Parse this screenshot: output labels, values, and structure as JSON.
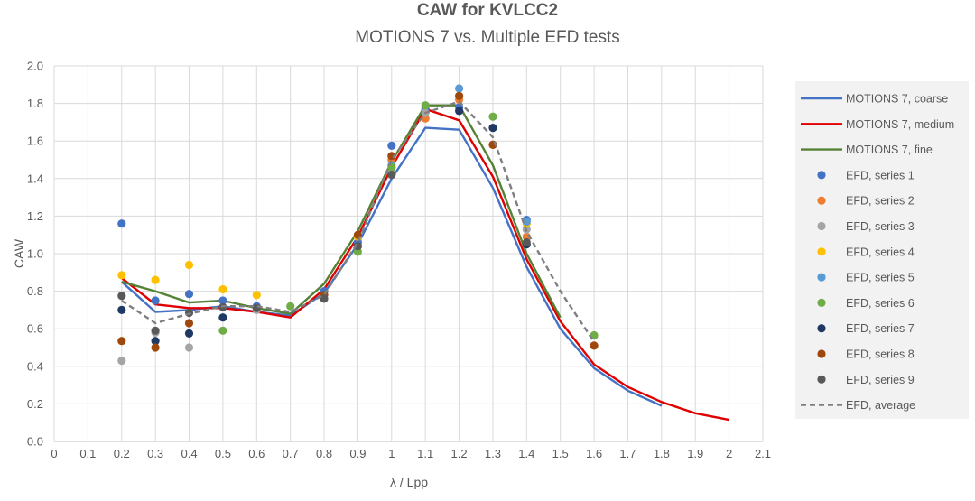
{
  "chart_data": {
    "type": "line",
    "title": "CAW for KVLCC2",
    "subtitle": "MOTIONS 7 vs. Multiple EFD tests",
    "xlabel": "λ / Lpp",
    "ylabel": "CAW",
    "xlim": [
      0,
      2.1
    ],
    "ylim": [
      0,
      2.0
    ],
    "x_ticks": [
      "0",
      "0.1",
      "0.2",
      "0.3",
      "0.4",
      "0.5",
      "0.6",
      "0.7",
      "0.8",
      "0.9",
      "1",
      "1.1",
      "1.2",
      "1.3",
      "1.4",
      "1.5",
      "1.6",
      "1.7",
      "1.8",
      "1.9",
      "2",
      "2.1"
    ],
    "y_ticks": [
      "0.0",
      "0.2",
      "0.4",
      "0.6",
      "0.8",
      "1.0",
      "1.2",
      "1.4",
      "1.6",
      "1.8",
      "2.0"
    ],
    "grid": true,
    "legend_position": "right",
    "lines": [
      {
        "name": "MOTIONS 7, coarse",
        "color": "#4472c4",
        "dash": false,
        "points": [
          [
            0.2,
            0.85
          ],
          [
            0.3,
            0.69
          ],
          [
            0.4,
            0.7
          ],
          [
            0.5,
            0.72
          ],
          [
            0.6,
            0.69
          ],
          [
            0.7,
            0.67
          ],
          [
            0.8,
            0.79
          ],
          [
            0.9,
            1.05
          ],
          [
            1.0,
            1.4
          ],
          [
            1.1,
            1.67
          ],
          [
            1.2,
            1.66
          ],
          [
            1.3,
            1.35
          ],
          [
            1.4,
            0.93
          ],
          [
            1.5,
            0.6
          ],
          [
            1.6,
            0.39
          ],
          [
            1.7,
            0.27
          ],
          [
            1.8,
            0.19
          ]
        ]
      },
      {
        "name": "MOTIONS 7, medium",
        "color": "#e00000",
        "dash": false,
        "points": [
          [
            0.2,
            0.87
          ],
          [
            0.3,
            0.73
          ],
          [
            0.4,
            0.71
          ],
          [
            0.5,
            0.71
          ],
          [
            0.6,
            0.69
          ],
          [
            0.7,
            0.66
          ],
          [
            0.8,
            0.81
          ],
          [
            0.9,
            1.09
          ],
          [
            1.0,
            1.46
          ],
          [
            1.1,
            1.77
          ],
          [
            1.2,
            1.71
          ],
          [
            1.3,
            1.41
          ],
          [
            1.4,
            0.97
          ],
          [
            1.5,
            0.64
          ],
          [
            1.6,
            0.41
          ],
          [
            1.7,
            0.29
          ],
          [
            1.8,
            0.21
          ],
          [
            1.9,
            0.15
          ],
          [
            2.0,
            0.115
          ]
        ]
      },
      {
        "name": "MOTIONS 7, fine",
        "color": "#548235",
        "dash": false,
        "points": [
          [
            0.2,
            0.85
          ],
          [
            0.3,
            0.8
          ],
          [
            0.4,
            0.74
          ],
          [
            0.5,
            0.75
          ],
          [
            0.6,
            0.71
          ],
          [
            0.7,
            0.68
          ],
          [
            0.8,
            0.84
          ],
          [
            0.9,
            1.12
          ],
          [
            1.0,
            1.49
          ],
          [
            1.1,
            1.79
          ],
          [
            1.2,
            1.79
          ],
          [
            1.3,
            1.47
          ],
          [
            1.4,
            1.0
          ],
          [
            1.5,
            0.66
          ]
        ]
      },
      {
        "name": "EFD, average",
        "color": "#7f7f7f",
        "dash": true,
        "points": [
          [
            0.2,
            0.75
          ],
          [
            0.3,
            0.63
          ],
          [
            0.4,
            0.68
          ],
          [
            0.5,
            0.72
          ],
          [
            0.6,
            0.72
          ],
          [
            0.7,
            0.69
          ],
          [
            0.8,
            0.78
          ],
          [
            0.9,
            1.06
          ],
          [
            1.0,
            1.5
          ],
          [
            1.1,
            1.75
          ],
          [
            1.2,
            1.81
          ],
          [
            1.3,
            1.62
          ],
          [
            1.4,
            1.12
          ],
          [
            1.5,
            0.8
          ],
          [
            1.6,
            0.53
          ]
        ]
      }
    ],
    "scatter": [
      {
        "name": "EFD, series 1",
        "color": "#4472c4",
        "points": [
          [
            0.2,
            1.16
          ],
          [
            0.3,
            0.75
          ],
          [
            0.4,
            0.785
          ],
          [
            0.5,
            0.75
          ],
          [
            0.6,
            0.72
          ],
          [
            0.8,
            0.8
          ],
          [
            0.9,
            1.06
          ],
          [
            1.0,
            1.575
          ],
          [
            1.1,
            1.77
          ],
          [
            1.2,
            1.78
          ],
          [
            1.4,
            1.18
          ]
        ]
      },
      {
        "name": "EFD, series 2",
        "color": "#ed7d31",
        "points": [
          [
            1.0,
            1.5
          ],
          [
            1.1,
            1.72
          ],
          [
            1.2,
            1.82
          ],
          [
            1.3,
            1.58
          ],
          [
            1.4,
            1.09
          ]
        ]
      },
      {
        "name": "EFD, series 3",
        "color": "#a5a5a5",
        "points": [
          [
            0.2,
            0.43
          ],
          [
            0.3,
            0.58
          ],
          [
            0.4,
            0.5
          ],
          [
            0.6,
            0.7
          ],
          [
            1.0,
            1.43
          ],
          [
            1.1,
            1.75
          ],
          [
            1.4,
            1.13
          ]
        ]
      },
      {
        "name": "EFD, series 4",
        "color": "#ffc000",
        "points": [
          [
            0.2,
            0.885
          ],
          [
            0.3,
            0.86
          ],
          [
            0.4,
            0.94
          ],
          [
            0.5,
            0.81
          ],
          [
            0.6,
            0.78
          ],
          [
            0.9,
            1.09
          ],
          [
            1.4,
            1.16
          ]
        ]
      },
      {
        "name": "EFD, series 5",
        "color": "#5b9bd5",
        "points": [
          [
            1.0,
            1.47
          ],
          [
            1.2,
            1.88
          ],
          [
            1.4,
            1.17
          ]
        ]
      },
      {
        "name": "EFD, series 6",
        "color": "#70ad47",
        "points": [
          [
            0.5,
            0.59
          ],
          [
            0.7,
            0.72
          ],
          [
            0.9,
            1.01
          ],
          [
            1.0,
            1.46
          ],
          [
            1.1,
            1.79
          ],
          [
            1.3,
            1.73
          ],
          [
            1.6,
            0.565
          ]
        ]
      },
      {
        "name": "EFD, series 7",
        "color": "#203864",
        "points": [
          [
            0.2,
            0.7
          ],
          [
            0.3,
            0.535
          ],
          [
            0.4,
            0.575
          ],
          [
            0.5,
            0.66
          ],
          [
            1.2,
            1.76
          ],
          [
            1.3,
            1.67
          ],
          [
            1.4,
            1.05
          ]
        ]
      },
      {
        "name": "EFD, series 8",
        "color": "#9e480e",
        "points": [
          [
            0.2,
            0.535
          ],
          [
            0.3,
            0.5
          ],
          [
            0.4,
            0.63
          ],
          [
            0.8,
            0.78
          ],
          [
            0.9,
            1.1
          ],
          [
            1.0,
            1.52
          ],
          [
            1.2,
            1.84
          ],
          [
            1.3,
            1.58
          ],
          [
            1.6,
            0.51
          ]
        ]
      },
      {
        "name": "EFD, series 9",
        "color": "#595959",
        "points": [
          [
            0.2,
            0.775
          ],
          [
            0.3,
            0.59
          ],
          [
            0.4,
            0.685
          ],
          [
            0.5,
            0.715
          ],
          [
            0.6,
            0.71
          ],
          [
            0.8,
            0.76
          ],
          [
            0.9,
            1.04
          ],
          [
            1.0,
            1.42
          ],
          [
            1.4,
            1.06
          ]
        ]
      }
    ],
    "legend_order": [
      "MOTIONS 7, coarse",
      "MOTIONS 7, medium",
      "MOTIONS 7, fine",
      "EFD, series 1",
      "EFD, series 2",
      "EFD, series 3",
      "EFD, series 4",
      "EFD, series 5",
      "EFD, series 6",
      "EFD, series 7",
      "EFD, series 8",
      "EFD, series 9",
      "EFD, average"
    ]
  }
}
